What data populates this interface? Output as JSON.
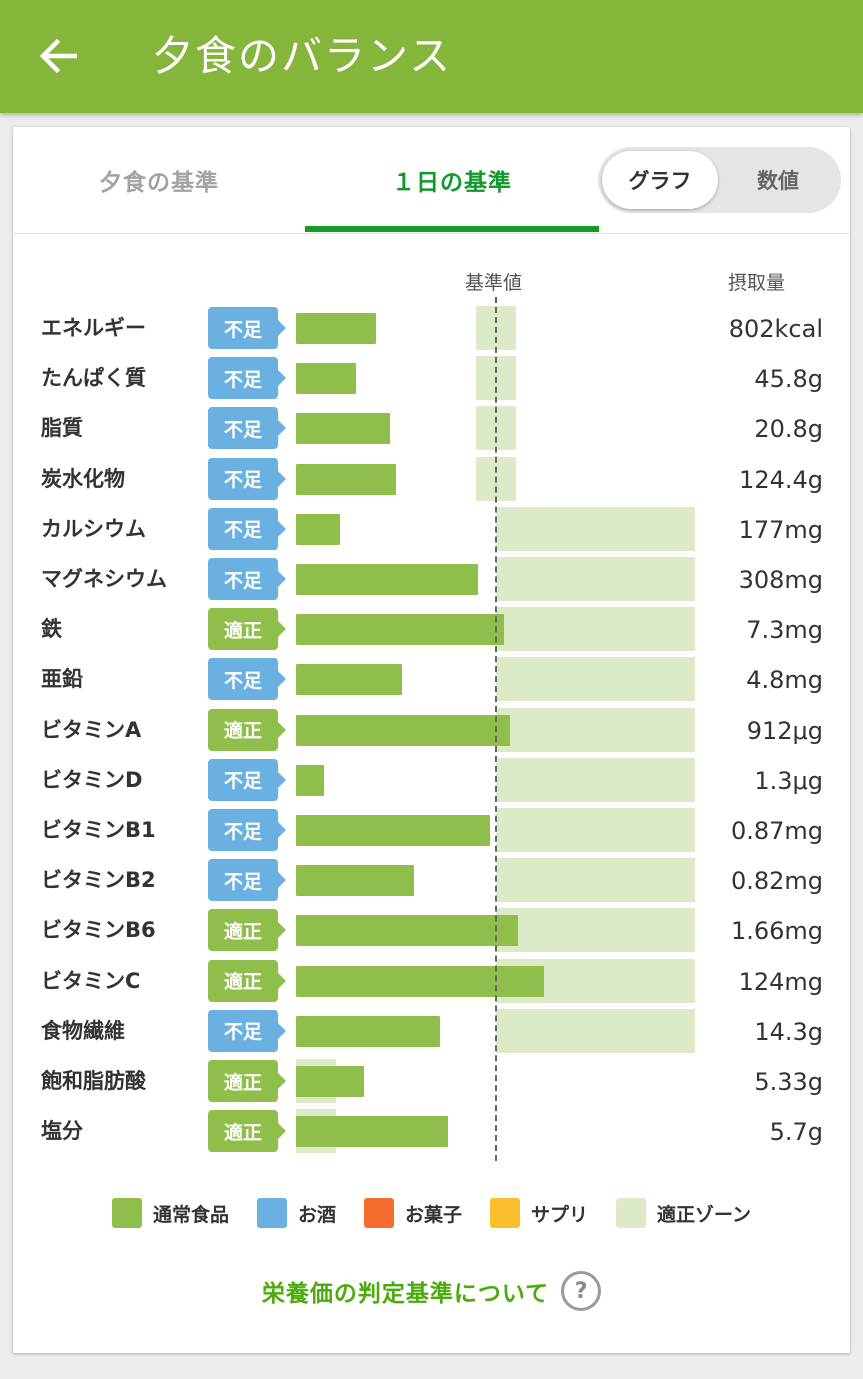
{
  "appbar": {
    "title": "夕食のバランス"
  },
  "tabs": [
    {
      "label": "夕食の基準",
      "selected": false
    },
    {
      "label": "１日の基準",
      "selected": true
    }
  ],
  "view_toggle": {
    "options": [
      "グラフ",
      "数値"
    ],
    "selected": "グラフ"
  },
  "columns": {
    "reference": "基準値",
    "intake": "摂取量"
  },
  "colors": {
    "normal_food": "#8fbe4a",
    "alcohol": "#6ab1e2",
    "snacks": "#f56e30",
    "supplement": "#fbbe2c",
    "zone": "#ddeac8",
    "badge_low": "#6ab1e2",
    "badge_ok": "#8fbe4a"
  },
  "legend": [
    {
      "label": "通常食品",
      "color": "#8fbe4a"
    },
    {
      "label": "お酒",
      "color": "#6ab1e2"
    },
    {
      "label": "お菓子",
      "color": "#f56e30"
    },
    {
      "label": "サプリ",
      "color": "#fbbe2c"
    },
    {
      "label": "適正ゾーン",
      "color": "#ddeac8"
    }
  ],
  "criteria_link": {
    "label": "栄養価の判定基準について",
    "icon": "help-icon",
    "icon_glyph": "?"
  },
  "chart_data": {
    "type": "bar",
    "orientation": "horizontal",
    "reference_value_pct": 100,
    "notes": "Bar values estimated as percent of the daily reference value (dashed line = 100%).",
    "categories": [
      "エネルギー",
      "たんぱく質",
      "脂質",
      "炭水化物",
      "カルシウム",
      "マグネシウム",
      "鉄",
      "亜鉛",
      "ビタミンA",
      "ビタミンD",
      "ビタミンB1",
      "ビタミンB2",
      "ビタミンB6",
      "ビタミンC",
      "食物繊維",
      "飽和脂肪酸",
      "塩分"
    ],
    "rows": [
      {
        "name": "エネルギー",
        "status": "不足",
        "status_type": "low",
        "intake": "802kcal",
        "pct": 40,
        "zone": [
          90,
          110
        ]
      },
      {
        "name": "たんぱく質",
        "status": "不足",
        "status_type": "low",
        "intake": "45.8g",
        "pct": 30,
        "zone": [
          90,
          110
        ]
      },
      {
        "name": "脂質",
        "status": "不足",
        "status_type": "low",
        "intake": "20.8g",
        "pct": 47,
        "zone": [
          90,
          110
        ]
      },
      {
        "name": "炭水化物",
        "status": "不足",
        "status_type": "low",
        "intake": "124.4g",
        "pct": 50,
        "zone": [
          90,
          110
        ]
      },
      {
        "name": "カルシウム",
        "status": "不足",
        "status_type": "low",
        "intake": "177mg",
        "pct": 22,
        "zone": [
          100,
          200
        ]
      },
      {
        "name": "マグネシウム",
        "status": "不足",
        "status_type": "low",
        "intake": "308mg",
        "pct": 91,
        "zone": [
          100,
          200
        ]
      },
      {
        "name": "鉄",
        "status": "適正",
        "status_type": "ok",
        "intake": "7.3mg",
        "pct": 104,
        "zone": [
          100,
          200
        ]
      },
      {
        "name": "亜鉛",
        "status": "不足",
        "status_type": "low",
        "intake": "4.8mg",
        "pct": 53,
        "zone": [
          100,
          200
        ]
      },
      {
        "name": "ビタミンA",
        "status": "適正",
        "status_type": "ok",
        "intake": "912μg",
        "pct": 107,
        "zone": [
          100,
          200
        ]
      },
      {
        "name": "ビタミンD",
        "status": "不足",
        "status_type": "low",
        "intake": "1.3μg",
        "pct": 14,
        "zone": [
          100,
          200
        ]
      },
      {
        "name": "ビタミンB1",
        "status": "不足",
        "status_type": "low",
        "intake": "0.87mg",
        "pct": 97,
        "zone": [
          100,
          200
        ]
      },
      {
        "name": "ビタミンB2",
        "status": "不足",
        "status_type": "low",
        "intake": "0.82mg",
        "pct": 59,
        "zone": [
          100,
          200
        ]
      },
      {
        "name": "ビタミンB6",
        "status": "適正",
        "status_type": "ok",
        "intake": "1.66mg",
        "pct": 111,
        "zone": [
          100,
          200
        ]
      },
      {
        "name": "ビタミンC",
        "status": "適正",
        "status_type": "ok",
        "intake": "124mg",
        "pct": 124,
        "zone": [
          100,
          200
        ]
      },
      {
        "name": "食物繊維",
        "status": "不足",
        "status_type": "low",
        "intake": "14.3g",
        "pct": 72,
        "zone": [
          100,
          200
        ]
      },
      {
        "name": "飽和脂肪酸",
        "status": "適正",
        "status_type": "ok",
        "intake": "5.33g",
        "pct": 34,
        "zone": [
          0,
          100
        ]
      },
      {
        "name": "塩分",
        "status": "適正",
        "status_type": "ok",
        "intake": "5.7g",
        "pct": 76,
        "zone": [
          0,
          100
        ]
      }
    ]
  }
}
